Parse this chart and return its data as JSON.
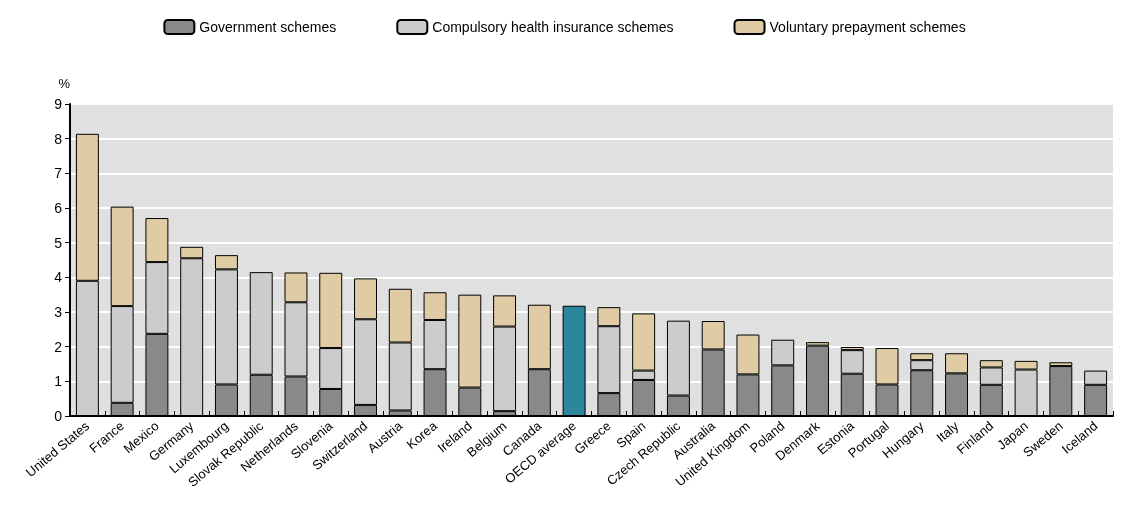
{
  "chart_data": {
    "type": "bar",
    "stacked": true,
    "ylabel": "%",
    "categories": [
      "United States",
      "France",
      "Mexico",
      "Germany",
      "Luxembourg",
      "Slovak Republic",
      "Netherlands",
      "Slovenia",
      "Switzerland",
      "Austria",
      "Korea",
      "Ireland",
      "Belgium",
      "Canada",
      "OECD average",
      "Greece",
      "Spain",
      "Czech Republic",
      "Australia",
      "United Kingdom",
      "Poland",
      "Denmark",
      "Estonia",
      "Portugal",
      "Hungary",
      "Italy",
      "Finland",
      "Japan",
      "Sweden",
      "Iceland"
    ],
    "series": [
      {
        "name": "Government schemes",
        "color": "#898989",
        "values": [
          null,
          0.38,
          2.37,
          null,
          0.91,
          1.19,
          1.14,
          0.78,
          0.32,
          0.16,
          1.35,
          0.82,
          0.14,
          1.35,
          null,
          0.66,
          1.04,
          0.59,
          1.92,
          1.2,
          1.46,
          2.03,
          1.22,
          0.91,
          1.32,
          1.23,
          0.9,
          null,
          1.44,
          0.9
        ]
      },
      {
        "name": "Compulsory health insurance schemes",
        "color": "#cccccc",
        "values": [
          3.9,
          2.79,
          2.07,
          4.55,
          3.32,
          2.96,
          2.14,
          1.18,
          2.47,
          1.96,
          1.42,
          null,
          2.44,
          null,
          null,
          1.93,
          0.27,
          2.16,
          null,
          null,
          0.74,
          null,
          0.68,
          null,
          0.29,
          null,
          0.5,
          1.34,
          null,
          0.41
        ]
      },
      {
        "name": "Voluntary prepayment schemes",
        "color": "#dfcca4",
        "values": [
          4.24,
          2.87,
          1.27,
          0.33,
          0.41,
          null,
          0.86,
          2.17,
          1.18,
          1.55,
          0.8,
          2.68,
          0.9,
          1.86,
          null,
          0.55,
          1.65,
          null,
          0.82,
          1.15,
          null,
          0.1,
          0.09,
          1.05,
          0.2,
          0.58,
          0.21,
          0.25,
          0.11,
          null
        ]
      },
      {
        "color": "#2e869e",
        "values": [
          null,
          null,
          null,
          null,
          null,
          null,
          null,
          null,
          null,
          null,
          null,
          null,
          null,
          null,
          3.18,
          null,
          null,
          null,
          null,
          null,
          null,
          null,
          null,
          null,
          null,
          null,
          null,
          null,
          null,
          null
        ]
      }
    ],
    "ylim": [
      0,
      9
    ],
    "yticks": [
      0,
      1,
      2,
      3,
      4,
      5,
      6,
      7,
      8,
      9
    ],
    "grid": "y",
    "legend": "top"
  }
}
